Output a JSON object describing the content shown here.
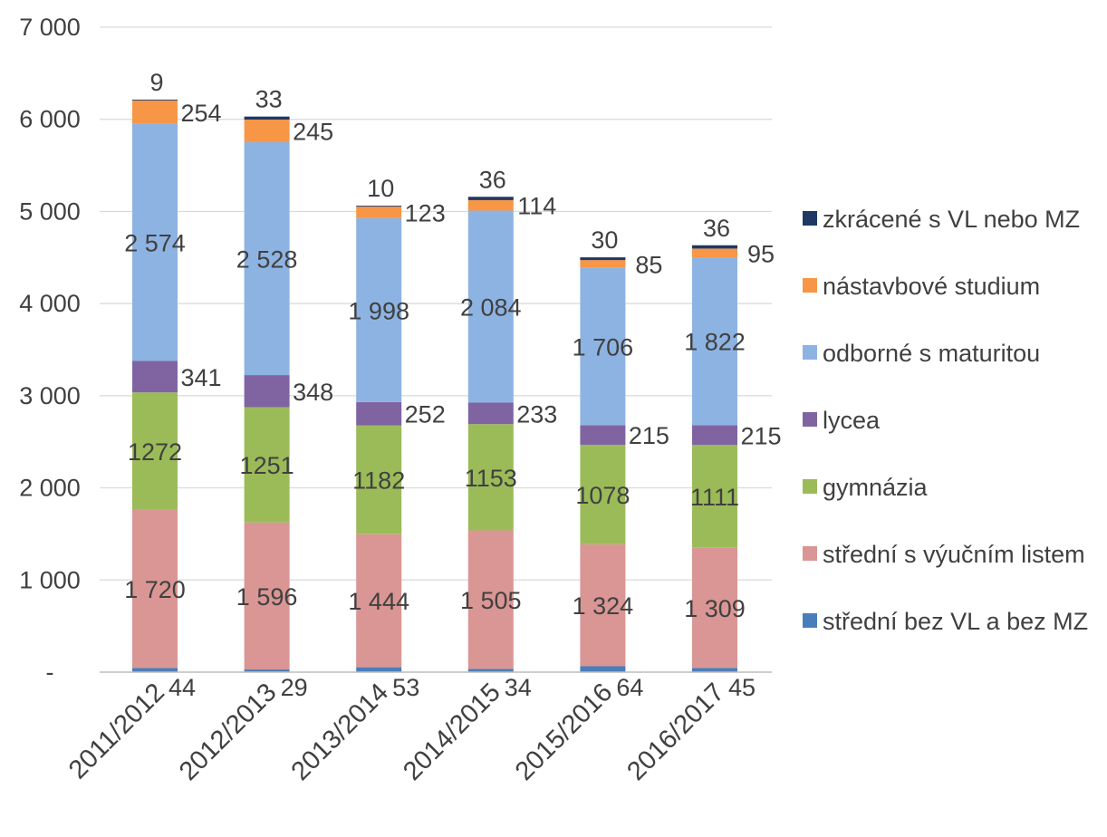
{
  "chart_data": {
    "type": "bar",
    "stacked": true,
    "title": "",
    "xlabel": "",
    "ylabel": "",
    "ylim": [
      0,
      7000
    ],
    "yticks": [
      0,
      1000,
      2000,
      3000,
      4000,
      5000,
      6000,
      7000
    ],
    "ytick_labels": [
      "-",
      "1 000",
      "2 000",
      "3 000",
      "4 000",
      "5 000",
      "6 000",
      "7 000"
    ],
    "grid": true,
    "legend_position": "right",
    "categories": [
      "2011/2012",
      "2012/2013",
      "2013/2014",
      "2014/2015",
      "2015/2016",
      "2016/2017"
    ],
    "series": [
      {
        "name": "střední bez VL a bez MZ",
        "color": "#4a7ebb",
        "values": [
          44,
          29,
          53,
          34,
          64,
          45
        ],
        "labels": [
          "44",
          "29",
          "53",
          "34",
          "64",
          "45"
        ]
      },
      {
        "name": "střední s výučním listem",
        "color": "#d99694",
        "values": [
          1720,
          1596,
          1444,
          1505,
          1324,
          1309
        ],
        "labels": [
          "1 720",
          "1 596",
          "1 444",
          "1 505",
          "1 324",
          "1 309"
        ]
      },
      {
        "name": "gymnázia",
        "color": "#9bbb59",
        "values": [
          1272,
          1251,
          1182,
          1153,
          1078,
          1111
        ],
        "labels": [
          "1272",
          "1251",
          "1182",
          "1153",
          "1078",
          "1111"
        ]
      },
      {
        "name": "lycea",
        "color": "#8064a2",
        "values": [
          341,
          348,
          252,
          233,
          215,
          215
        ],
        "labels": [
          "341",
          "348",
          "252",
          "233",
          "215",
          "215"
        ]
      },
      {
        "name": "odborné s maturitou",
        "color": "#8db3e2",
        "values": [
          2574,
          2528,
          1998,
          2084,
          1706,
          1822
        ],
        "labels": [
          "2 574",
          "2 528",
          "1 998",
          "2 084",
          "1 706",
          "1 822"
        ]
      },
      {
        "name": "nástavbové studium",
        "color": "#f79646",
        "values": [
          254,
          245,
          123,
          114,
          85,
          95
        ],
        "labels": [
          "254",
          "245",
          "123",
          "114",
          "85",
          "95"
        ]
      },
      {
        "name": "zkrácené s VL nebo MZ",
        "color": "#1f3864",
        "values": [
          9,
          33,
          10,
          36,
          30,
          36
        ],
        "labels": [
          "9",
          "33",
          "10",
          "36",
          "30",
          "36"
        ]
      }
    ]
  }
}
